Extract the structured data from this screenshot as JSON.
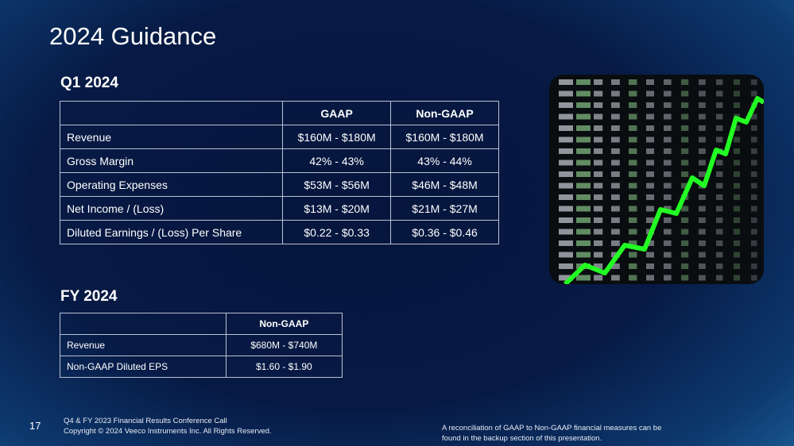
{
  "title": "2024 Guidance",
  "q1": {
    "heading": "Q1 2024",
    "table": {
      "header": [
        "GAAP",
        "Non-GAAP"
      ],
      "rows": [
        [
          "Revenue",
          "$160M - $180M",
          "$160M - $180M"
        ],
        [
          "Gross Margin",
          "42% - 43%",
          "43% - 44%"
        ],
        [
          "Operating Expenses",
          "$53M - $56M",
          "$46M - $48M"
        ],
        [
          "Net Income / (Loss)",
          "$13M - $20M",
          "$21M - $27M"
        ],
        [
          "Diluted Earnings / (Loss) Per Share",
          "$0.22 - $0.33",
          "$0.36 - $0.46"
        ]
      ]
    }
  },
  "fy": {
    "heading": "FY 2024",
    "table": {
      "header": [
        "Non-GAAP"
      ],
      "rows": [
        [
          "Revenue",
          "$680M - $740M"
        ],
        [
          "Non-GAAP Diluted EPS",
          "$1.60 - $1.90"
        ]
      ]
    }
  },
  "footer": {
    "page_number": "17",
    "lines": [
      "Q4 & FY 2023 Financial Results Conference Call",
      "Copyright © 2024 Veeco Instruments Inc. All Rights Reserved."
    ],
    "note": [
      "A reconciliation of GAAP to Non-GAAP financial measures can be",
      "found in the backup section of this presentation."
    ]
  }
}
